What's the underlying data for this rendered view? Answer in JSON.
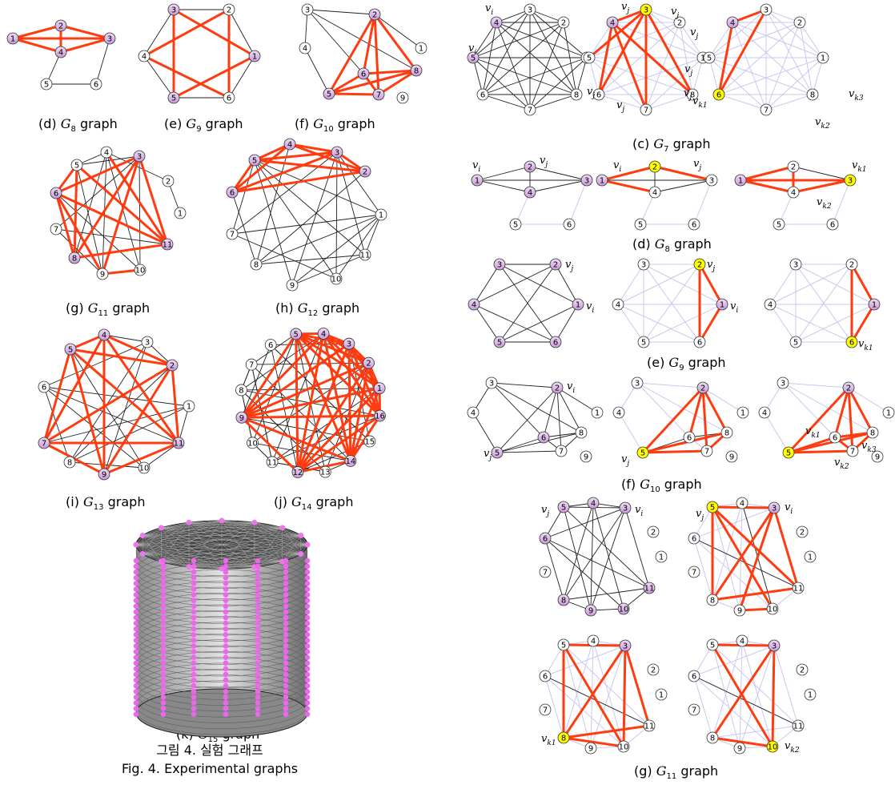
{
  "colors": {
    "purple": "#d8b4e6",
    "yellow": "#ffff00",
    "white": "#ffffff",
    "red": "#ff3b10",
    "black": "#222222",
    "faint": "#c8c8f0"
  },
  "figure": {
    "caption_ko": "그림 4. 실험 그래프",
    "caption_en": "Fig. 4. Experimental graphs"
  },
  "sub_labels": {
    "d": {
      "prefix": "(d)",
      "sym": "G",
      "sub": "8",
      "word": "graph"
    },
    "e": {
      "prefix": "(e)",
      "sym": "G",
      "sub": "9",
      "word": "graph"
    },
    "f": {
      "prefix": "(f)",
      "sym": "G",
      "sub": "10",
      "word": "graph"
    },
    "g": {
      "prefix": "(g)",
      "sym": "G",
      "sub": "11",
      "word": "graph"
    },
    "h": {
      "prefix": "(h)",
      "sym": "G",
      "sub": "12",
      "word": "graph"
    },
    "i": {
      "prefix": "(i)",
      "sym": "G",
      "sub": "13",
      "word": "graph"
    },
    "j": {
      "prefix": "(j)",
      "sym": "G",
      "sub": "14",
      "word": "graph"
    },
    "k": {
      "prefix": "(k)",
      "sym": "G",
      "sub": "15",
      "word": "graph"
    },
    "rc": {
      "prefix": "(c)",
      "sym": "G",
      "sub": "7",
      "word": "graph"
    },
    "rd": {
      "prefix": "(d)",
      "sym": "G",
      "sub": "8",
      "word": "graph"
    },
    "re": {
      "prefix": "(e)",
      "sym": "G",
      "sub": "9",
      "word": "graph"
    },
    "rf": {
      "prefix": "(f)",
      "sym": "G",
      "sub": "10",
      "word": "graph"
    },
    "rg": {
      "prefix": "(g)",
      "sym": "G",
      "sub": "11",
      "word": "graph"
    }
  },
  "vertex_labels": {
    "vi": "v",
    "vi_sub": "i",
    "vj": "v",
    "vj_sub": "j",
    "vk1_sub": "k1",
    "vk2_sub": "k2",
    "vk3_sub": "k3"
  },
  "graphs": [
    {
      "id": "G8",
      "nodes": [
        "1",
        "2",
        "3",
        "4",
        "5",
        "6"
      ],
      "purple": [
        "1",
        "2",
        "3",
        "4"
      ],
      "red_edges": [
        [
          "1",
          "2"
        ],
        [
          "1",
          "3"
        ],
        [
          "1",
          "4"
        ],
        [
          "2",
          "3"
        ],
        [
          "2",
          "4"
        ],
        [
          "3",
          "4"
        ]
      ],
      "black_edges": [
        [
          "4",
          "5"
        ],
        [
          "5",
          "6"
        ],
        [
          "6",
          "3"
        ]
      ]
    },
    {
      "id": "G9",
      "nodes": [
        "1",
        "2",
        "3",
        "4",
        "5",
        "6"
      ],
      "purple": [
        "1",
        "3",
        "5"
      ],
      "red_edges": [
        [
          "3",
          "1"
        ],
        [
          "1",
          "5"
        ],
        [
          "5",
          "3"
        ],
        [
          "2",
          "4"
        ],
        [
          "4",
          "6"
        ],
        [
          "6",
          "2"
        ]
      ]
    },
    {
      "id": "G10",
      "nodes": [
        "1",
        "2",
        "3",
        "4",
        "5",
        "6",
        "7",
        "8",
        "9"
      ],
      "purple": [
        "2",
        "5",
        "6",
        "7",
        "8"
      ]
    },
    {
      "id": "G11",
      "nodes": [
        "1",
        "2",
        "3",
        "4",
        "5",
        "6",
        "7",
        "8",
        "9",
        "10",
        "11"
      ],
      "purple": [
        "3",
        "6",
        "8",
        "11"
      ]
    },
    {
      "id": "G12",
      "nodes": [
        "1",
        "2",
        "3",
        "4",
        "5",
        "6",
        "7",
        "8",
        "9",
        "10",
        "11"
      ],
      "purple": [
        "2",
        "3",
        "4",
        "5",
        "6"
      ]
    },
    {
      "id": "G13",
      "nodes": [
        "1",
        "2",
        "3",
        "4",
        "5",
        "6",
        "7",
        "8",
        "9",
        "10",
        "11"
      ],
      "purple": [
        "2",
        "4",
        "5",
        "7",
        "9",
        "11"
      ]
    },
    {
      "id": "G14",
      "nodes": [
        "1",
        "2",
        "3",
        "4",
        "5",
        "6",
        "7",
        "8",
        "9",
        "10",
        "11",
        "12",
        "13",
        "14",
        "15",
        "16"
      ],
      "purple": [
        "1",
        "2",
        "3",
        "4",
        "5",
        "9",
        "12",
        "14",
        "16"
      ]
    }
  ]
}
